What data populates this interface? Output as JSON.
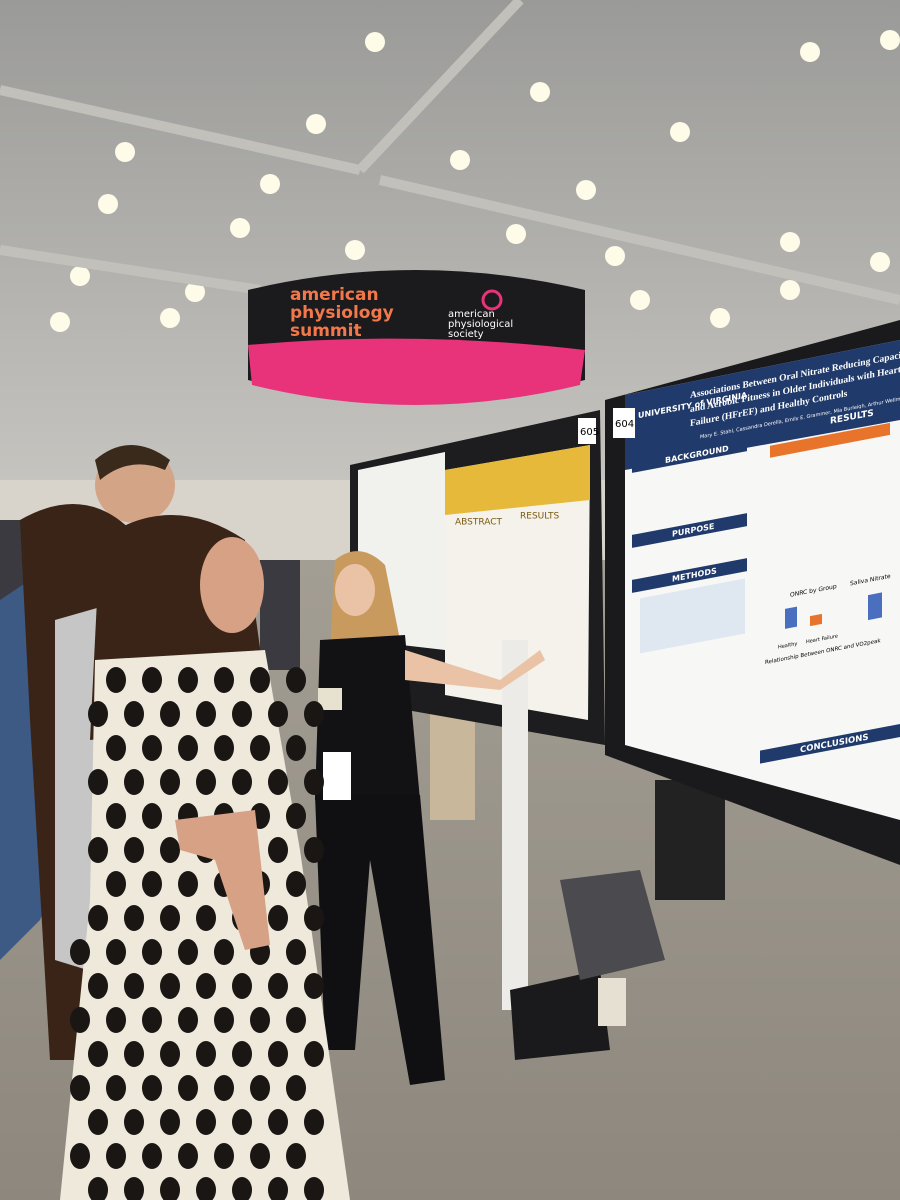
{
  "banner": {
    "brand_lines": [
      "american",
      "physiology",
      "summit"
    ],
    "society_lines": [
      "american",
      "physiological",
      "society"
    ]
  },
  "poster_605": {
    "number": "605",
    "sections": [
      "ABSTRACT",
      "RESULTS"
    ]
  },
  "poster_604": {
    "number": "604",
    "institution": "UNIVERSITY of VIRGINIA",
    "title_lines": [
      "Associations Between Oral Nitrate Reducing Capacity",
      "and Aerobic Fitness in Older Individuals with Heart",
      "Failure (HFrEF) and Healthy Controls"
    ],
    "authors": "Mary E. Stahl, Cassandra Derella, Emily E. Grammer, Mia Burleigh, Arthur Wellman, Jason D. Allen",
    "sections": {
      "background": "BACKGROUND",
      "purpose": "PURPOSE",
      "methods": "METHODS",
      "results": "RESULTS",
      "conclusions": "CONCLUSIONS"
    },
    "chart_titles": [
      "ONRC by Group",
      "Saliva Nitrate",
      "Relationship Between ONRC and VO2peak"
    ],
    "groups": [
      "Healthy",
      "Heart Failure"
    ]
  }
}
